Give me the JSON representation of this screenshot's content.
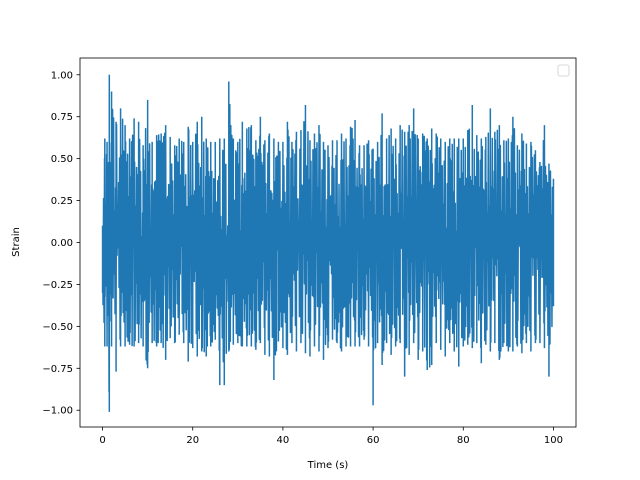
{
  "chart_data": {
    "type": "line",
    "title": "",
    "xlabel": "Time (s)",
    "ylabel": "Strain",
    "xlim": [
      -5,
      105
    ],
    "ylim": [
      -1.1,
      1.1
    ],
    "xticks": [
      0,
      20,
      40,
      60,
      80,
      100
    ],
    "xtick_labels": [
      "0",
      "20",
      "40",
      "60",
      "80",
      "100"
    ],
    "yticks": [
      -1.0,
      -0.75,
      -0.5,
      -0.25,
      0.0,
      0.25,
      0.5,
      0.75,
      1.0
    ],
    "ytick_labels": [
      "−1.00",
      "−0.75",
      "−0.50",
      "−0.25",
      "0.00",
      "0.25",
      "0.50",
      "0.75",
      "1.00"
    ],
    "grid": false,
    "legend": {
      "placement": "upper-right",
      "entries": []
    },
    "series": [
      {
        "color": "#1f77b4",
        "x_range": [
          0,
          100
        ],
        "envelope": {
          "x": [
            0,
            0.5,
            1,
            1.5,
            2,
            3,
            4,
            5,
            6,
            7,
            8,
            9,
            10,
            11,
            12,
            13,
            14,
            15,
            16,
            17,
            18,
            19,
            20,
            21,
            22,
            23,
            24,
            25,
            26,
            27,
            28,
            29,
            30,
            31,
            32,
            33,
            34,
            35,
            36,
            37,
            38,
            39,
            40,
            41,
            42,
            43,
            44,
            45,
            46,
            47,
            48,
            49,
            50,
            51,
            52,
            53,
            54,
            55,
            56,
            57,
            58,
            59,
            60,
            61,
            62,
            63,
            64,
            65,
            66,
            67,
            68,
            69,
            70,
            71,
            72,
            73,
            74,
            75,
            76,
            77,
            78,
            79,
            80,
            81,
            82,
            83,
            84,
            85,
            86,
            87,
            88,
            89,
            90,
            91,
            92,
            93,
            94,
            95,
            96,
            97,
            98,
            99,
            100
          ],
          "max": [
            0.1,
            0.62,
            0.6,
            1.0,
            0.9,
            0.72,
            0.8,
            0.7,
            0.62,
            0.74,
            0.72,
            0.58,
            0.85,
            0.6,
            0.64,
            0.65,
            0.7,
            0.63,
            0.58,
            0.62,
            0.6,
            0.69,
            0.6,
            0.72,
            0.75,
            0.62,
            0.6,
            0.6,
            0.62,
            0.62,
            0.96,
            0.62,
            0.6,
            0.72,
            0.68,
            0.7,
            0.61,
            0.75,
            0.61,
            0.65,
            0.62,
            0.6,
            0.6,
            0.72,
            0.6,
            0.66,
            0.67,
            0.82,
            0.61,
            0.65,
            0.7,
            0.6,
            0.58,
            0.61,
            0.61,
            0.65,
            0.62,
            0.69,
            0.73,
            0.58,
            0.58,
            0.61,
            0.56,
            0.6,
            0.77,
            0.62,
            0.68,
            0.62,
            0.7,
            0.66,
            0.7,
            0.8,
            0.62,
            0.65,
            0.62,
            0.68,
            0.65,
            0.62,
            0.6,
            0.62,
            0.62,
            0.62,
            0.62,
            0.67,
            0.82,
            0.64,
            0.62,
            0.63,
            0.8,
            0.66,
            0.7,
            0.61,
            0.62,
            0.75,
            0.58,
            0.65,
            0.59,
            0.6,
            0.55,
            0.48,
            0.7,
            0.47,
            0.38
          ],
          "min": [
            -0.3,
            -0.62,
            -0.62,
            -1.01,
            -0.62,
            -0.77,
            -0.62,
            -0.62,
            -0.61,
            -0.62,
            -0.6,
            -0.62,
            -0.75,
            -0.6,
            -0.62,
            -0.6,
            -0.7,
            -0.57,
            -0.6,
            -0.55,
            -0.6,
            -0.71,
            -0.63,
            -0.68,
            -0.65,
            -0.68,
            -0.62,
            -0.58,
            -0.85,
            -0.85,
            -0.65,
            -0.61,
            -0.6,
            -0.62,
            -0.62,
            -0.62,
            -0.64,
            -0.6,
            -0.67,
            -0.68,
            -0.82,
            -0.59,
            -0.63,
            -0.67,
            -0.6,
            -0.65,
            -0.6,
            -0.66,
            -0.68,
            -0.62,
            -0.65,
            -0.7,
            -0.63,
            -0.58,
            -0.6,
            -0.65,
            -0.62,
            -0.62,
            -0.62,
            -0.62,
            -0.58,
            -0.62,
            -0.97,
            -0.6,
            -0.73,
            -0.6,
            -0.67,
            -0.62,
            -0.6,
            -0.8,
            -0.67,
            -0.6,
            -0.7,
            -0.65,
            -0.76,
            -0.73,
            -0.6,
            -0.64,
            -0.68,
            -0.6,
            -0.65,
            -0.74,
            -0.62,
            -0.61,
            -0.63,
            -0.6,
            -0.72,
            -0.61,
            -0.65,
            -0.6,
            -0.7,
            -0.6,
            -0.65,
            -0.65,
            -0.62,
            -0.66,
            -0.6,
            -0.65,
            -0.6,
            -0.6,
            -0.63,
            -0.8,
            -0.38
          ]
        }
      }
    ]
  }
}
